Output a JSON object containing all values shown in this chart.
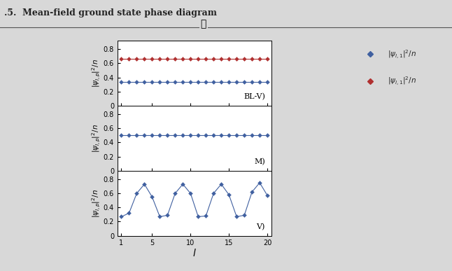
{
  "l_values": [
    1,
    2,
    3,
    4,
    5,
    6,
    7,
    8,
    9,
    10,
    11,
    12,
    13,
    14,
    15,
    16,
    17,
    18,
    19,
    20
  ],
  "blv_red": [
    0.667,
    0.667,
    0.667,
    0.667,
    0.667,
    0.667,
    0.667,
    0.667,
    0.667,
    0.667,
    0.667,
    0.667,
    0.667,
    0.667,
    0.667,
    0.667,
    0.667,
    0.667,
    0.667,
    0.667
  ],
  "blv_blue": [
    0.333,
    0.333,
    0.333,
    0.333,
    0.333,
    0.333,
    0.333,
    0.333,
    0.333,
    0.333,
    0.333,
    0.333,
    0.333,
    0.333,
    0.333,
    0.333,
    0.333,
    0.333,
    0.333,
    0.333
  ],
  "m_blue": [
    0.5,
    0.5,
    0.5,
    0.5,
    0.5,
    0.5,
    0.5,
    0.5,
    0.5,
    0.5,
    0.5,
    0.5,
    0.5,
    0.5,
    0.5,
    0.5,
    0.5,
    0.5,
    0.5,
    0.5
  ],
  "v_blue": [
    0.27,
    0.32,
    0.6,
    0.73,
    0.55,
    0.27,
    0.29,
    0.6,
    0.73,
    0.6,
    0.27,
    0.28,
    0.6,
    0.73,
    0.58,
    0.27,
    0.29,
    0.62,
    0.75,
    0.57
  ],
  "blue_color": "#4060a0",
  "red_color": "#b03030",
  "marker_size": 3,
  "linewidth": 0.8,
  "ylabel_blv": "$|\\psi_{l,p}|^2/n$",
  "ylabel_m": "$|\\psi_{l,p}|^2/n$",
  "ylabel_v": "$|\\psi_{l,p}|^2/n$",
  "xlabel": "$l$",
  "label_blv": "BL-V)",
  "label_m": "M)",
  "label_v": "V)",
  "legend_label_blue": "$|\\psi_{l,1}|^2/n$",
  "legend_label_red": "$|\\psi_{l,1}|^2/n$",
  "xticks": [
    1,
    5,
    10,
    15,
    20
  ],
  "page_bg": "#d8d8d8",
  "plot_bg": "#ffffff",
  "header_text": ".5.  Mean-field ground state phase diagram",
  "header_color": "#222222",
  "rule_color": "#555555"
}
